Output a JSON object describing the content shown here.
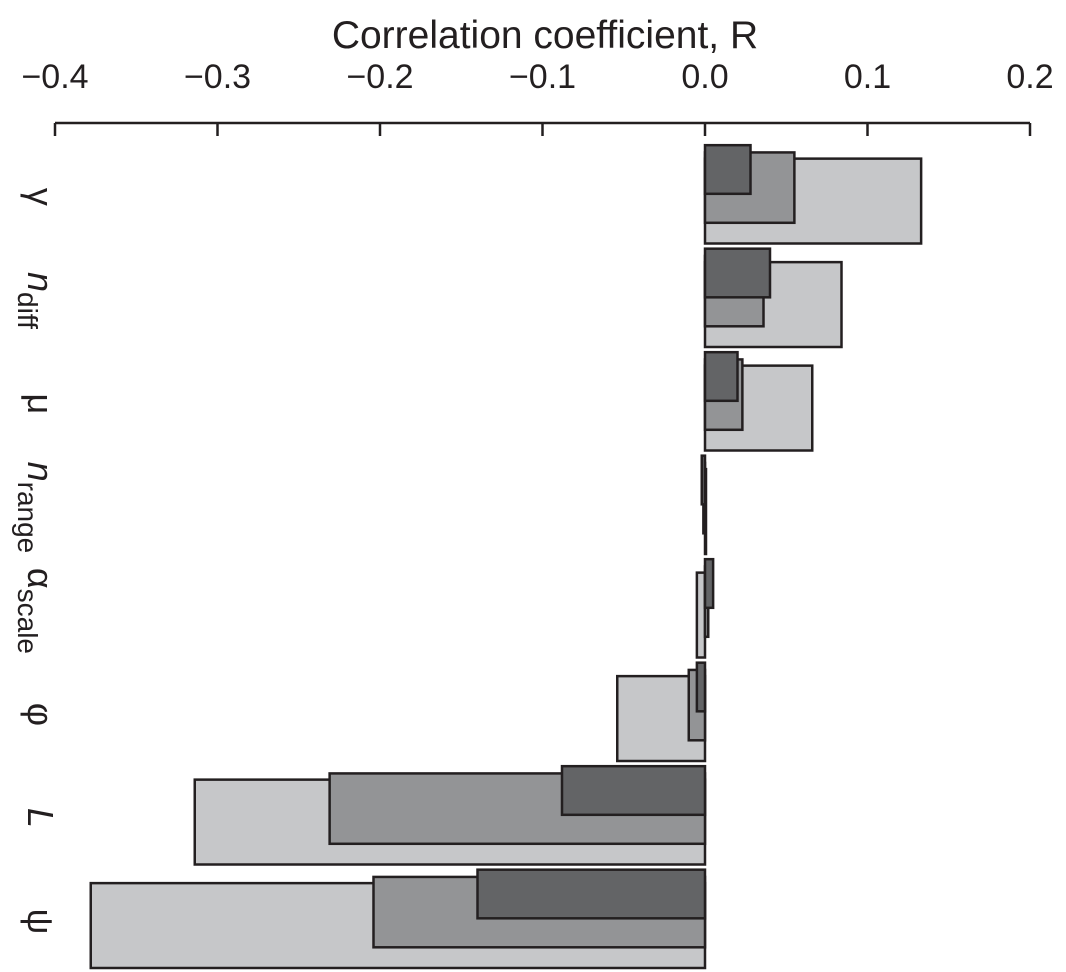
{
  "chart_data": {
    "type": "bar",
    "orientation": "horizontal",
    "title": "Correlation coefficient, R",
    "categories": [
      {
        "symbol": "γ"
      },
      {
        "symbol": "n",
        "subscript": "diff"
      },
      {
        "symbol": "μ"
      },
      {
        "symbol": "n",
        "subscript": "range"
      },
      {
        "symbol": "α",
        "subscript": "scale"
      },
      {
        "symbol": "φ"
      },
      {
        "symbol": "L"
      },
      {
        "symbol": "ψ"
      }
    ],
    "series": [
      {
        "color": "#c6c7c9",
        "values": [
          0.133,
          0.084,
          0.066,
          0.0,
          -0.005,
          -0.054,
          -0.314,
          -0.378
        ]
      },
      {
        "color": "#939496",
        "values": [
          0.055,
          0.036,
          0.023,
          -0.001,
          0.002,
          -0.01,
          -0.231,
          -0.204
        ]
      },
      {
        "color": "#636466",
        "values": [
          0.028,
          0.04,
          0.02,
          -0.002,
          0.005,
          -0.005,
          -0.088,
          -0.14
        ]
      }
    ],
    "xlim": [
      -0.4,
      0.2
    ],
    "xticks": [
      {
        "value": -0.4,
        "label": "−0.4"
      },
      {
        "value": -0.3,
        "label": "−0.3"
      },
      {
        "value": -0.2,
        "label": "−0.2"
      },
      {
        "value": -0.1,
        "label": "−0.1"
      },
      {
        "value": 0,
        "label": "0.0"
      },
      0.1,
      0.2
    ]
  }
}
